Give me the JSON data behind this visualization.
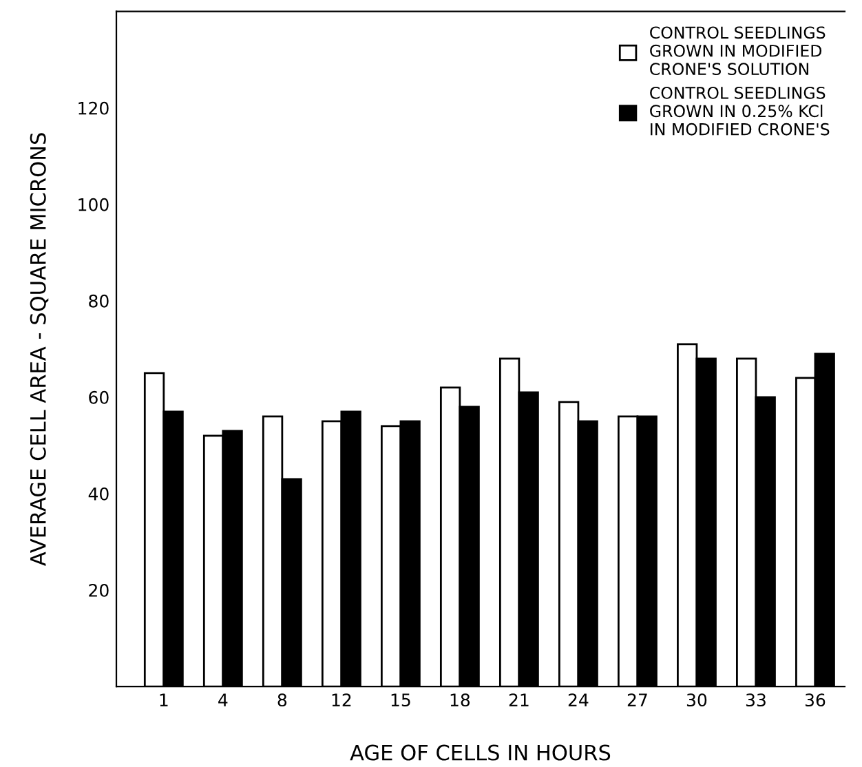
{
  "chart_data": {
    "type": "bar",
    "xlabel": "AGE OF CELLS IN HOURS",
    "ylabel": "AVERAGE CELL AREA - SQUARE MICRONS",
    "categories": [
      "1",
      "4",
      "8",
      "12",
      "15",
      "18",
      "21",
      "24",
      "27",
      "30",
      "33",
      "36"
    ],
    "series": [
      {
        "name": "CONTROL SEEDLINGS\nGROWN IN MODIFIED\nCRONE'S SOLUTION",
        "color": "#ffffff",
        "values": [
          65,
          52,
          56,
          55,
          54,
          62,
          68,
          59,
          56,
          71,
          68,
          64
        ]
      },
      {
        "name": "CONTROL SEEDLINGS\nGROWN IN 0.25% KCl\nIN MODIFIED CRONE'S",
        "color": "#000000",
        "values": [
          57,
          53,
          43,
          57,
          55,
          58,
          61,
          55,
          56,
          68,
          60,
          69
        ]
      }
    ],
    "ylim": [
      0,
      140
    ],
    "yticks": [
      20,
      40,
      60,
      80,
      100,
      120
    ],
    "grid": false,
    "legend": "top right"
  }
}
